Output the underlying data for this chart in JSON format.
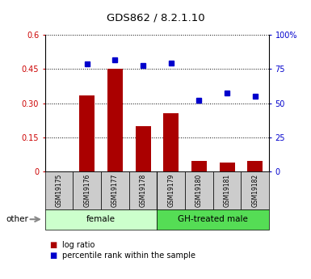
{
  "title": "GDS862 / 8.2.1.10",
  "samples": [
    "GSM19175",
    "GSM19176",
    "GSM19177",
    "GSM19178",
    "GSM19179",
    "GSM19180",
    "GSM19181",
    "GSM19182"
  ],
  "log_ratio": [
    0.0,
    0.335,
    0.45,
    0.2,
    0.255,
    0.045,
    0.038,
    0.048
  ],
  "percentile_rank": [
    0.0,
    78.5,
    82.0,
    77.5,
    79.5,
    52.0,
    57.5,
    55.0
  ],
  "bar_color": "#aa0000",
  "dot_color": "#0000cc",
  "ylim_left": [
    0,
    0.6
  ],
  "ylim_right": [
    0,
    100
  ],
  "yticks_left": [
    0,
    0.15,
    0.3,
    0.45,
    0.6
  ],
  "yticks_left_labels": [
    "0",
    "0.15",
    "0.30",
    "0.45",
    "0.6"
  ],
  "yticks_right": [
    0,
    25,
    50,
    75,
    100
  ],
  "yticks_right_labels": [
    "0",
    "25",
    "50",
    "75",
    "100%"
  ],
  "groups": [
    {
      "label": "female",
      "start": 0,
      "end": 4,
      "color": "#ccffcc"
    },
    {
      "label": "GH-treated male",
      "start": 4,
      "end": 8,
      "color": "#55dd55"
    }
  ],
  "sample_box_color": "#cccccc",
  "legend_bar_label": "log ratio",
  "legend_dot_label": "percentile rank within the sample",
  "other_label": "other"
}
